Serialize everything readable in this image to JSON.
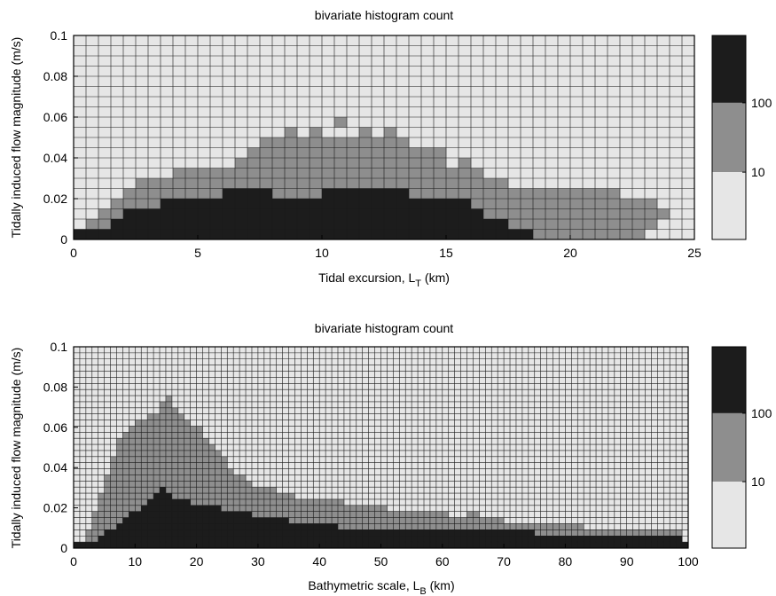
{
  "chart_data": [
    {
      "type": "heatmap",
      "title": "bivariate histogram count",
      "xlabel": "Tidal excursion, L",
      "xlabel_sub": "T",
      "xlabel_unit": " (km)",
      "ylabel": "Tidally induced flow magnitude (m/s)",
      "xlim": [
        0,
        25
      ],
      "ylim": [
        0,
        0.1
      ],
      "xticks": [
        0,
        5,
        10,
        15,
        20,
        25
      ],
      "xtick_labels": [
        "0",
        "5",
        "10",
        "15",
        "20",
        "25"
      ],
      "yticks": [
        0,
        0.02,
        0.04,
        0.06,
        0.08,
        0.1
      ],
      "ytick_labels": [
        "0",
        "0.02",
        "0.04",
        "0.06",
        "0.08",
        "0.1"
      ],
      "bins": {
        "x_count": 50,
        "y_count": 20
      },
      "count_levels": [
        "<10",
        "10-100",
        ">100"
      ],
      "colorbar_labels": [
        "10",
        "100"
      ],
      "colors": {
        "low": "#e6e6e6",
        "mid": "#8e8e8e",
        "high": "#1c1c1c",
        "grid": "#1a1a1a"
      },
      "rows_top_to_bottom": [
        "..................................................",
        "..................................................",
        "..................................................",
        "..................................................",
        "..................................................",
        "..................................................",
        "..................................................",
        "..................................................",
        ".....................1............................",
        ".................1.1...1.1........................",
        "...............111111111111..........................",
        "..............1111111111111111...................",
        ".............11111111111111111.1.................",
        "........1111111111111111111111111...................",
        ".....111111111111111111111111111111..............",
        "....1111111122221111222222211111111111111111......",
        "...11112222222222222222222222222111111111111111..",
        "..1122222222222222222222222222222111111111111111.",
        ".1122222222222222222222222222222222111111111111..",
        "2222222222222222222222222222222222222111111111....."
      ]
    },
    {
      "type": "heatmap",
      "title": "bivariate histogram count",
      "xlabel": "Bathymetric scale, L",
      "xlabel_sub": "B",
      "xlabel_unit": " (km)",
      "ylabel": "Tidally induced flow magnitude (m/s)",
      "xlim": [
        0,
        100
      ],
      "ylim": [
        0,
        0.1
      ],
      "xticks": [
        0,
        10,
        20,
        30,
        40,
        50,
        60,
        70,
        80,
        90,
        100
      ],
      "xtick_labels": [
        "0",
        "10",
        "20",
        "30",
        "40",
        "50",
        "60",
        "70",
        "80",
        "90",
        "100"
      ],
      "yticks": [
        0,
        0.02,
        0.04,
        0.06,
        0.08,
        0.1
      ],
      "ytick_labels": [
        "0",
        "0.02",
        "0.04",
        "0.06",
        "0.08",
        "0.1"
      ],
      "bins": {
        "x_count": 100,
        "y_count": 33
      },
      "count_levels": [
        "<10",
        "10-100",
        ">100"
      ],
      "colorbar_labels": [
        "10",
        "100"
      ],
      "colors": {
        "low": "#e6e6e6",
        "mid": "#8e8e8e",
        "high": "#1c1c1c",
        "grid": "#1a1a1a"
      },
      "profile": {
        "high_tops": [
          1,
          1,
          1,
          1,
          2,
          3,
          3,
          4,
          5,
          6,
          6,
          7,
          8,
          9,
          10,
          9,
          8,
          8,
          8,
          7,
          7,
          7,
          7,
          7,
          6,
          6,
          6,
          6,
          6,
          5,
          5,
          5,
          5,
          5,
          5,
          4,
          4,
          4,
          4,
          4,
          4,
          4,
          4,
          3,
          3,
          3,
          3,
          3,
          3,
          3,
          3,
          3,
          3,
          3,
          3,
          3,
          3,
          3,
          3,
          3,
          3,
          3,
          3,
          3,
          3,
          3,
          3,
          3,
          3,
          3,
          3,
          3,
          3,
          3,
          3,
          2,
          2,
          2,
          2,
          2,
          2,
          2,
          2,
          2,
          2,
          2,
          2,
          2,
          2,
          2,
          2,
          2,
          2,
          2,
          2,
          2,
          2,
          2,
          2,
          1
        ],
        "mid_tops": [
          0,
          1,
          3,
          6,
          9,
          12,
          15,
          18,
          19,
          20,
          21,
          21,
          22,
          22,
          24,
          25,
          23,
          22,
          21,
          20,
          20,
          18,
          17,
          16,
          15,
          13,
          12,
          12,
          11,
          10,
          10,
          10,
          10,
          9,
          9,
          9,
          8,
          8,
          8,
          8,
          8,
          8,
          8,
          8,
          7,
          7,
          7,
          7,
          7,
          7,
          7,
          6,
          6,
          6,
          6,
          6,
          6,
          6,
          6,
          6,
          6,
          5,
          5,
          5,
          6,
          6,
          5,
          5,
          5,
          5,
          4,
          4,
          4,
          4,
          4,
          4,
          4,
          4,
          4,
          4,
          4,
          4,
          4,
          3,
          3,
          3,
          3,
          3,
          3,
          3,
          3,
          3,
          3,
          3,
          3,
          3,
          3,
          3,
          3,
          0
        ]
      }
    }
  ]
}
